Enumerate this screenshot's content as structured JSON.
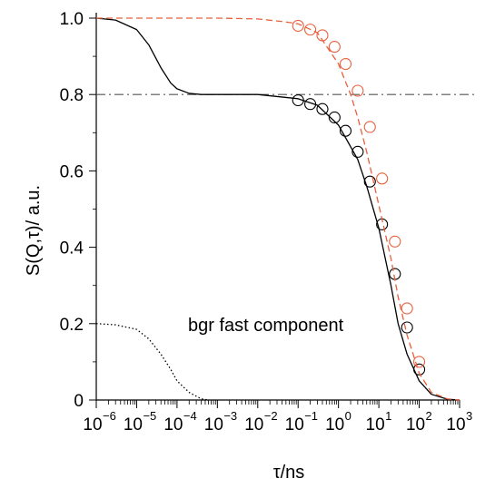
{
  "chart_data": {
    "type": "line",
    "title": "",
    "xlabel": "τ/ns",
    "ylabel": "S(Q,τ)/ a.u.",
    "x_scale": "log",
    "xlim": [
      1e-06,
      1000
    ],
    "ylim": [
      0,
      1.0
    ],
    "x_ticks": [
      {
        "base": "10",
        "exp": "−6"
      },
      {
        "base": "10",
        "exp": "−5"
      },
      {
        "base": "10",
        "exp": "−4"
      },
      {
        "base": "10",
        "exp": "−3"
      },
      {
        "base": "10",
        "exp": "−2"
      },
      {
        "base": "10",
        "exp": "−1"
      },
      {
        "base": "10",
        "exp": "0"
      },
      {
        "base": "10",
        "exp": "1"
      },
      {
        "base": "10",
        "exp": "2"
      },
      {
        "base": "10",
        "exp": "3"
      }
    ],
    "y_ticks": [
      "0",
      "0.2",
      "0.4",
      "0.6",
      "0.8",
      "1.0"
    ],
    "y_tick_values": [
      0,
      0.2,
      0.4,
      0.6,
      0.8,
      1.0
    ],
    "grid": false,
    "annotations": [
      {
        "text": "bgr fast component"
      }
    ],
    "reference_line": {
      "y": 0.8,
      "style": "dash-dot",
      "color": "#555555"
    },
    "series": [
      {
        "style": "solid-line",
        "color": "#000000",
        "x": [
          1e-06,
          3e-06,
          1e-05,
          2e-05,
          4e-05,
          7e-05,
          0.0001,
          0.0002,
          0.0004,
          0.001,
          0.01,
          0.1,
          0.3,
          1,
          3,
          5,
          10,
          20,
          30,
          50,
          100,
          200,
          500,
          1000
        ],
        "y": [
          1.0,
          0.995,
          0.97,
          0.93,
          0.87,
          0.83,
          0.815,
          0.803,
          0.8,
          0.8,
          0.8,
          0.789,
          0.772,
          0.72,
          0.63,
          0.56,
          0.45,
          0.3,
          0.2,
          0.12,
          0.05,
          0.015,
          0.002,
          0.0
        ]
      },
      {
        "style": "open-circles",
        "color": "#000000",
        "x": [
          0.1,
          0.2,
          0.4,
          0.8,
          1.5,
          3,
          6,
          12,
          25,
          50,
          100
        ],
        "y": [
          0.785,
          0.775,
          0.762,
          0.74,
          0.705,
          0.65,
          0.572,
          0.46,
          0.33,
          0.19,
          0.08
        ]
      },
      {
        "style": "dashed-line",
        "color": "#e8603c",
        "x": [
          1e-06,
          0.001,
          0.01,
          0.05,
          0.1,
          0.3,
          1,
          2,
          3,
          5,
          10,
          20,
          30,
          50,
          100,
          200,
          500,
          1000
        ],
        "y": [
          1.0,
          1.0,
          0.998,
          0.99,
          0.985,
          0.962,
          0.88,
          0.8,
          0.74,
          0.65,
          0.51,
          0.37,
          0.27,
          0.17,
          0.07,
          0.02,
          0.003,
          0.0
        ]
      },
      {
        "style": "open-circles",
        "color": "#e8603c",
        "x": [
          0.1,
          0.2,
          0.4,
          0.8,
          1.5,
          3,
          6,
          12,
          25,
          50,
          100
        ],
        "y": [
          0.98,
          0.97,
          0.955,
          0.925,
          0.88,
          0.81,
          0.715,
          0.58,
          0.415,
          0.24,
          0.1
        ]
      },
      {
        "style": "dotted-line",
        "color": "#000000",
        "x": [
          1e-06,
          3e-06,
          1e-05,
          2e-05,
          4e-05,
          7e-05,
          0.0001,
          0.0002,
          0.0004,
          0.0006
        ],
        "y": [
          0.2,
          0.197,
          0.185,
          0.16,
          0.12,
          0.08,
          0.05,
          0.02,
          0.003,
          0.0
        ]
      }
    ]
  }
}
